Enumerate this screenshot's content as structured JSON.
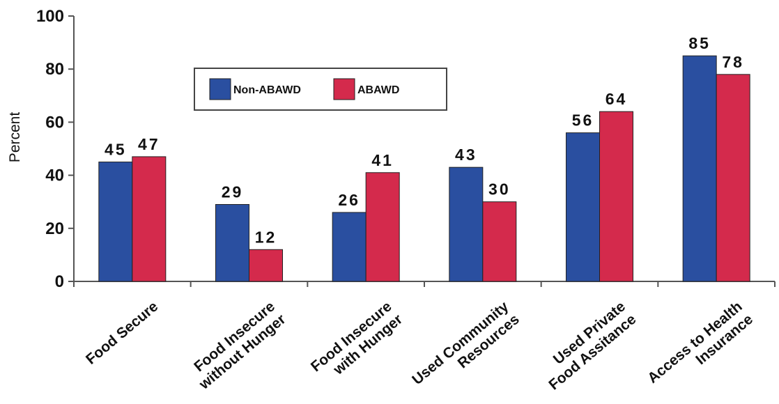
{
  "chart_data": {
    "type": "bar",
    "categories": [
      [
        "Food Secure"
      ],
      [
        "Food Insecure",
        "without Hunger"
      ],
      [
        "Food Insecure",
        "with Hunger"
      ],
      [
        "Used Community",
        "Resources"
      ],
      [
        "Used Private",
        "Food Assitance"
      ],
      [
        "Access to Health",
        "Insurance"
      ]
    ],
    "series": [
      {
        "name": "Non-ABAWD",
        "color": "#2a4fa0",
        "values": [
          45,
          29,
          26,
          43,
          56,
          85
        ]
      },
      {
        "name": "ABAWD",
        "color": "#d42a4c",
        "values": [
          47,
          12,
          41,
          30,
          64,
          78
        ]
      }
    ],
    "ylabel": "Percent",
    "ylim": [
      0,
      100
    ],
    "yticks": [
      0,
      20,
      40,
      60,
      80,
      100
    ],
    "legend_position": "top-left inside plot",
    "grid": false
  }
}
